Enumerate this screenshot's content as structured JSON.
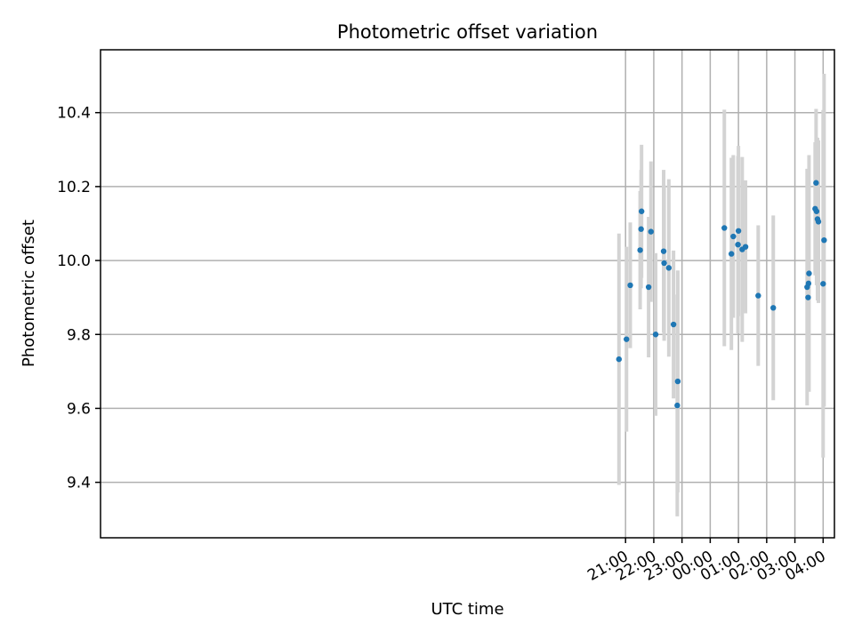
{
  "chart_data": {
    "type": "scatter",
    "title": "Photometric offset variation",
    "xlabel": "UTC time",
    "ylabel": "Photometric offset",
    "x_unit": "hours since 00:00 UTC",
    "xlim": [
      -21.6,
      4.4
    ],
    "ylim": [
      9.25,
      10.57
    ],
    "x_ticks": [
      {
        "value": -3,
        "label": "21:00"
      },
      {
        "value": -2,
        "label": "22:00"
      },
      {
        "value": -1,
        "label": "23:00"
      },
      {
        "value": 0,
        "label": "00:00"
      },
      {
        "value": 1,
        "label": "01:00"
      },
      {
        "value": 2,
        "label": "02:00"
      },
      {
        "value": 3,
        "label": "03:00"
      },
      {
        "value": 4,
        "label": "04:00"
      }
    ],
    "y_ticks": [
      {
        "value": 9.4,
        "label": "9.4"
      },
      {
        "value": 9.6,
        "label": "9.6"
      },
      {
        "value": 9.8,
        "label": "9.8"
      },
      {
        "value": 10.0,
        "label": "10.0"
      },
      {
        "value": 10.2,
        "label": "10.2"
      },
      {
        "value": 10.4,
        "label": "10.4"
      }
    ],
    "grid": true,
    "marker_color": "#1f77b4",
    "errorbar_color": "#d3d3d3",
    "points": [
      {
        "x": -3.233,
        "y": 9.733,
        "yerr": 0.34
      },
      {
        "x": -2.967,
        "y": 9.787,
        "yerr": 0.25
      },
      {
        "x": -2.833,
        "y": 9.933,
        "yerr": 0.17
      },
      {
        "x": -2.483,
        "y": 10.028,
        "yerr": 0.16
      },
      {
        "x": -2.45,
        "y": 10.085,
        "yerr": 0.16
      },
      {
        "x": -2.433,
        "y": 10.133,
        "yerr": 0.18
      },
      {
        "x": -2.183,
        "y": 9.928,
        "yerr": 0.19
      },
      {
        "x": -2.1,
        "y": 10.078,
        "yerr": 0.19
      },
      {
        "x": -1.933,
        "y": 9.8,
        "yerr": 0.22
      },
      {
        "x": -1.65,
        "y": 10.025,
        "yerr": 0.22
      },
      {
        "x": -1.633,
        "y": 9.993,
        "yerr": 0.21
      },
      {
        "x": -1.467,
        "y": 9.98,
        "yerr": 0.24
      },
      {
        "x": -1.3,
        "y": 9.827,
        "yerr": 0.2
      },
      {
        "x": -1.167,
        "y": 9.608,
        "yerr": 0.3
      },
      {
        "x": -1.15,
        "y": 9.673,
        "yerr": 0.3
      },
      {
        "x": 0.5,
        "y": 10.088,
        "yerr": 0.32
      },
      {
        "x": 0.75,
        "y": 10.018,
        "yerr": 0.26
      },
      {
        "x": 0.817,
        "y": 10.065,
        "yerr": 0.22
      },
      {
        "x": 0.983,
        "y": 10.043,
        "yerr": 0.24
      },
      {
        "x": 1.0,
        "y": 10.08,
        "yerr": 0.23
      },
      {
        "x": 1.133,
        "y": 10.03,
        "yerr": 0.25
      },
      {
        "x": 1.25,
        "y": 10.037,
        "yerr": 0.18
      },
      {
        "x": 1.7,
        "y": 9.905,
        "yerr": 0.19
      },
      {
        "x": 2.233,
        "y": 9.872,
        "yerr": 0.25
      },
      {
        "x": 3.433,
        "y": 9.928,
        "yerr": 0.32
      },
      {
        "x": 3.467,
        "y": 9.9,
        "yerr": 0.25
      },
      {
        "x": 3.483,
        "y": 9.938,
        "yerr": 0.29
      },
      {
        "x": 3.5,
        "y": 9.965,
        "yerr": 0.32
      },
      {
        "x": 3.717,
        "y": 10.14,
        "yerr": 0.18
      },
      {
        "x": 3.75,
        "y": 10.21,
        "yerr": 0.2
      },
      {
        "x": 3.767,
        "y": 10.133,
        "yerr": 0.2
      },
      {
        "x": 3.8,
        "y": 10.112,
        "yerr": 0.22
      },
      {
        "x": 3.833,
        "y": 10.105,
        "yerr": 0.22
      },
      {
        "x": 4.0,
        "y": 9.937,
        "yerr": 0.47
      },
      {
        "x": 4.033,
        "y": 10.055,
        "yerr": 0.45
      }
    ]
  }
}
